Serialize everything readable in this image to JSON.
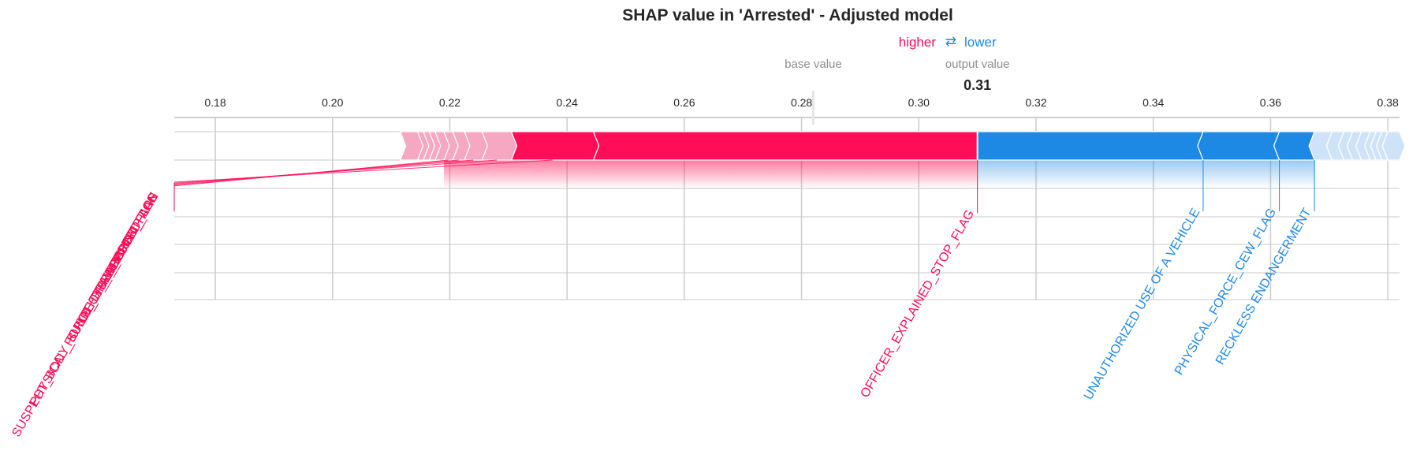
{
  "chart_data": {
    "type": "force",
    "title": "SHAP value in 'Arrested' - Adjusted model",
    "legend": {
      "higher_label": "higher",
      "lower_label": "lower",
      "arrows_glyph": "⇄"
    },
    "base_value_label": "base value",
    "output_value_label": "output value",
    "output_value_text": "0.31",
    "output_value": 0.31,
    "base_value": 0.282,
    "xlim": [
      0.173,
      0.382
    ],
    "ticks": [
      0.18,
      0.2,
      0.22,
      0.24,
      0.26,
      0.28,
      0.3,
      0.32,
      0.34,
      0.36,
      0.38
    ],
    "tick_labels": [
      "0.18",
      "0.20",
      "0.22",
      "0.24",
      "0.26",
      "0.28",
      "0.30",
      "0.32",
      "0.34",
      "0.36",
      "0.38"
    ],
    "positive_boundaries": [
      0.2125,
      0.2145,
      0.2155,
      0.2165,
      0.2175,
      0.219,
      0.2205,
      0.2225,
      0.2255,
      0.2305,
      0.2445,
      0.31
    ],
    "negative_boundaries": [
      0.31,
      0.3485,
      0.3615,
      0.3675,
      0.3705,
      0.3725,
      0.374,
      0.3755,
      0.377,
      0.378,
      0.379,
      0.38,
      0.382
    ],
    "positive_features": [
      {
        "name": "OFFICER_EXPLAINED_STOP_FLAG",
        "start": 0.2445,
        "end": 0.31
      },
      {
        "name": "SUSPECT_REPORTED_AGE",
        "start": 0.2305,
        "end": 0.2445
      },
      {
        "name": "PHYSICAL_FORCE_DRAW_POINT_FLAG",
        "start": 0.2255,
        "end": 0.2305
      },
      {
        "name": "OTHER_WEAPON_FLAG",
        "start": 0.2225,
        "end": 0.2255
      },
      {
        "name": "SUSPECT_BODY_BUILD_TYPE_DESCRIPTION",
        "start": 0.2205,
        "end": 0.2225
      },
      {
        "name": "SEARCHED_FLAG",
        "start": 0.219,
        "end": 0.2205
      }
    ],
    "negative_features": [
      {
        "name": "UNAUTHORIZED USE OF A VEHICLE",
        "start": 0.31,
        "end": 0.3485
      },
      {
        "name": "PHYSICAL_FORCE_CEW_FLAG",
        "start": 0.3485,
        "end": 0.3615
      },
      {
        "name": "RECKLESS ENDANGERMENT",
        "start": 0.3615,
        "end": 0.3675
      }
    ],
    "colors": {
      "positive": "#ff0d57",
      "negative": "#1e88e5",
      "positive_light": "#f6a7c2",
      "negative_light": "#cfe3f8",
      "grid": "#cccccc",
      "text": "#262626",
      "muted": "#8c8c8c"
    }
  }
}
